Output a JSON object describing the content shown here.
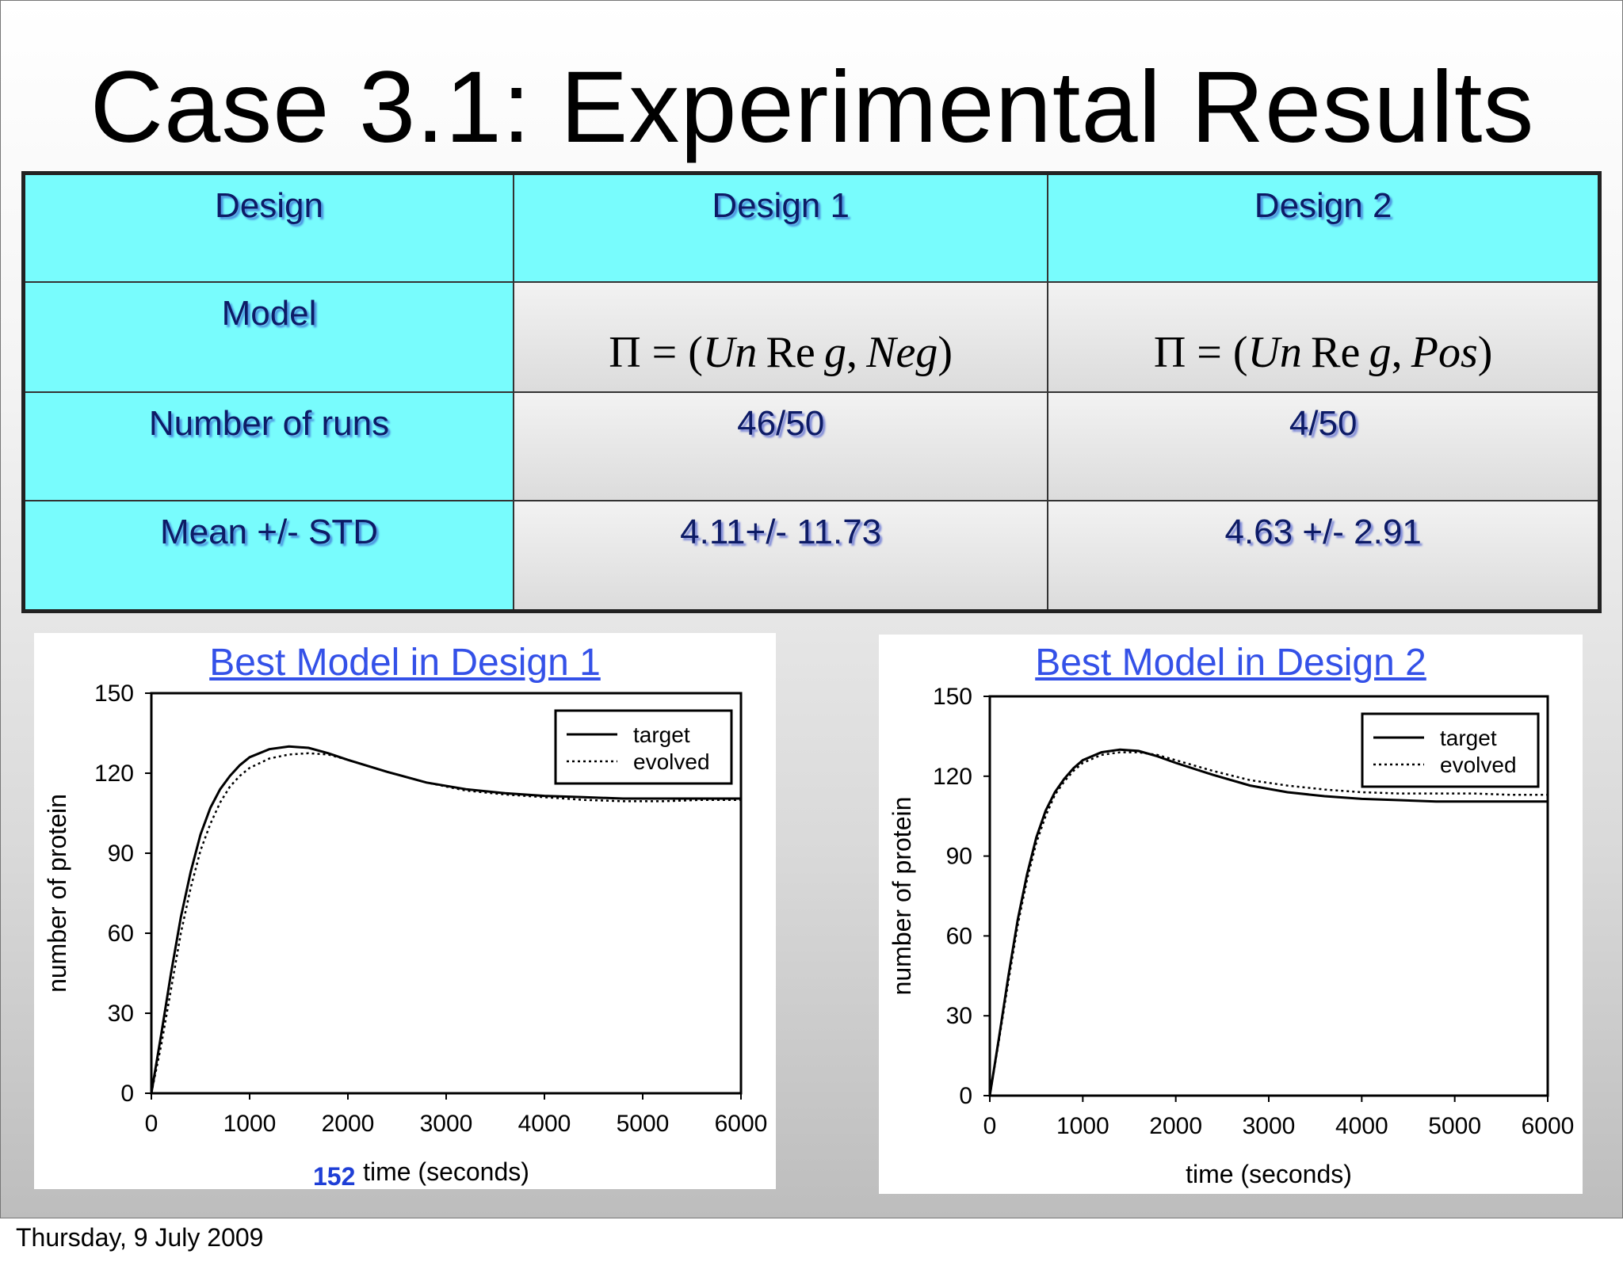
{
  "title": "Case 3.1: Experimental Results",
  "table": {
    "row_labels": [
      "Design",
      "Model",
      "Number of runs",
      "Mean +/- STD"
    ],
    "design1": {
      "header": "Design 1",
      "runs": "46/50",
      "mean_std": "4.11+/- 11.73"
    },
    "design2": {
      "header": "Design 2",
      "runs": "4/50",
      "mean_std": "4.63 +/- 2.91"
    }
  },
  "footer": {
    "date": "Thursday, 9 July 2009",
    "slide_number": "152"
  },
  "chart_data": [
    {
      "type": "line",
      "title": "Best Model in Design 1",
      "xlabel": "time (seconds)",
      "ylabel": "number of protein",
      "xlim": [
        0,
        6000
      ],
      "ylim": [
        0,
        150
      ],
      "xticks": [
        0,
        1000,
        2000,
        3000,
        4000,
        5000,
        6000
      ],
      "yticks": [
        0,
        30,
        60,
        90,
        120,
        150
      ],
      "legend": "top-right",
      "series": [
        {
          "name": "target",
          "style": "solid",
          "x": [
            0,
            100,
            200,
            300,
            400,
            500,
            600,
            700,
            800,
            900,
            1000,
            1200,
            1400,
            1600,
            1800,
            2000,
            2400,
            2800,
            3200,
            3600,
            4000,
            4400,
            4800,
            5200,
            5600,
            6000
          ],
          "y": [
            0,
            22,
            45,
            66,
            83,
            97,
            107,
            114,
            119,
            123,
            126,
            129,
            130,
            129.5,
            127.5,
            125,
            120.5,
            116.5,
            114,
            112.5,
            111.5,
            111,
            110.5,
            110.5,
            110.5,
            110.5
          ]
        },
        {
          "name": "evolved",
          "style": "dotted",
          "x": [
            0,
            100,
            200,
            300,
            400,
            500,
            600,
            700,
            800,
            900,
            1000,
            1200,
            1400,
            1600,
            1800,
            2000,
            2400,
            2800,
            3200,
            3600,
            4000,
            4400,
            4800,
            5200,
            5600,
            6000
          ],
          "y": [
            0,
            18,
            39,
            60,
            77,
            91,
            101,
            109,
            115,
            119,
            122,
            125.5,
            127,
            127.5,
            127,
            125,
            120.5,
            116.5,
            113.5,
            112,
            111,
            110,
            109.5,
            109.5,
            110,
            110
          ]
        }
      ]
    },
    {
      "type": "line",
      "title": "Best Model in Design 2",
      "xlabel": "time (seconds)",
      "ylabel": "number of protein",
      "xlim": [
        0,
        6000
      ],
      "ylim": [
        0,
        150
      ],
      "xticks": [
        0,
        1000,
        2000,
        3000,
        4000,
        5000,
        6000
      ],
      "yticks": [
        0,
        30,
        60,
        90,
        120,
        150
      ],
      "legend": "top-right",
      "series": [
        {
          "name": "target",
          "style": "solid",
          "x": [
            0,
            100,
            200,
            300,
            400,
            500,
            600,
            700,
            800,
            900,
            1000,
            1200,
            1400,
            1600,
            1800,
            2000,
            2400,
            2800,
            3200,
            3600,
            4000,
            4400,
            4800,
            5200,
            5600,
            6000
          ],
          "y": [
            0,
            22,
            45,
            66,
            83,
            97,
            107,
            114,
            119,
            123,
            126,
            129,
            130,
            129.5,
            127.5,
            125,
            120.5,
            116.5,
            114,
            112.5,
            111.5,
            111,
            110.5,
            110.5,
            110.5,
            110.5
          ]
        },
        {
          "name": "evolved",
          "style": "dotted",
          "x": [
            0,
            100,
            200,
            300,
            400,
            500,
            600,
            700,
            800,
            900,
            1000,
            1200,
            1400,
            1600,
            1800,
            2000,
            2400,
            2800,
            3200,
            3600,
            4000,
            4400,
            4800,
            5200,
            5600,
            6000
          ],
          "y": [
            0,
            21,
            43,
            64,
            81,
            95,
            105,
            113,
            118,
            122,
            125,
            128,
            129,
            129,
            128,
            126,
            122,
            118.5,
            116.5,
            115,
            114,
            113.5,
            113.5,
            113.5,
            113,
            113
          ]
        }
      ]
    }
  ]
}
